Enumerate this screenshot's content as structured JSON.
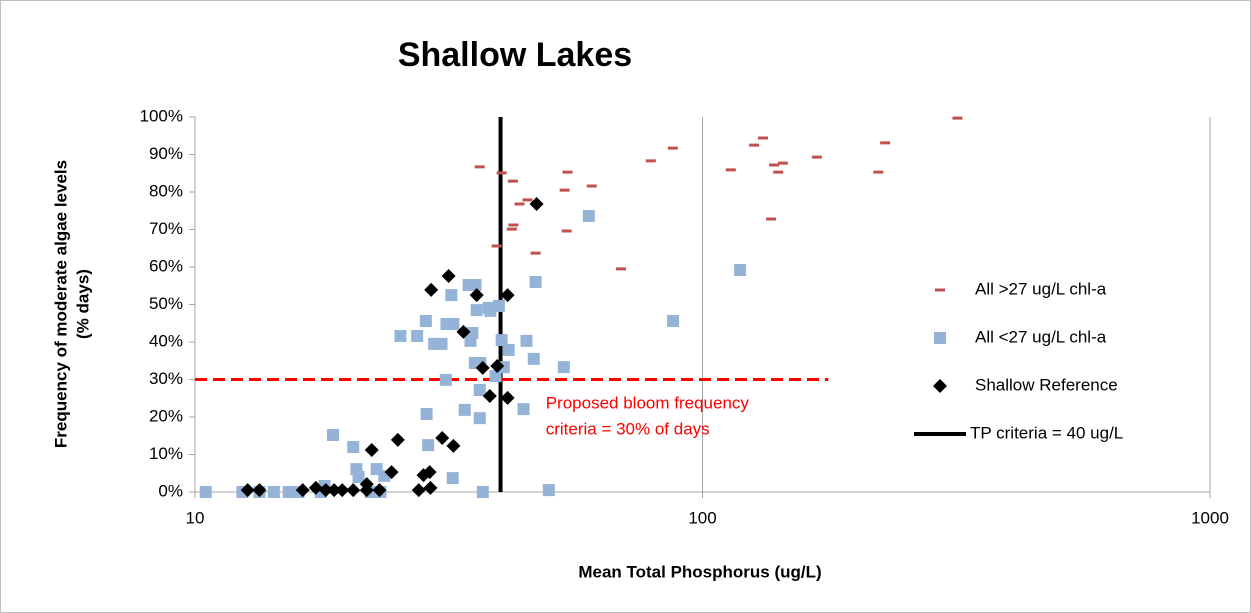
{
  "chart_data": {
    "type": "scatter",
    "title": "Shallow Lakes",
    "xlabel": "Mean Total Phosphorus (ug/L)",
    "ylabel": [
      "Frequency of moderate algae levels",
      "(% days)"
    ],
    "xscale": "log",
    "xlim": [
      10,
      1000
    ],
    "xticks": [
      10,
      100,
      1000
    ],
    "ylim": [
      0,
      100
    ],
    "yticks": [
      {
        "value": 0,
        "label": "0%"
      },
      {
        "value": 10,
        "label": "10%"
      },
      {
        "value": 20,
        "label": "20%"
      },
      {
        "value": 30,
        "label": "30%"
      },
      {
        "value": 40,
        "label": "40%"
      },
      {
        "value": 50,
        "label": "50%"
      },
      {
        "value": 60,
        "label": "60%"
      },
      {
        "value": 70,
        "label": "70%"
      },
      {
        "value": 80,
        "label": "80%"
      },
      {
        "value": 90,
        "label": "90%"
      },
      {
        "value": 100,
        "label": "100%"
      }
    ],
    "xgrid": true,
    "legend": "right",
    "series": [
      {
        "name": "All >27 ug/L chl-a",
        "marker": "dash",
        "color": "#c0504d",
        "x": [
          36.4,
          40.2,
          42.3,
          43.6,
          45.2,
          42.4,
          42.1,
          39.3,
          46.9,
          54.2,
          53.5,
          54.0,
          60.5,
          69.1,
          79.1,
          87.4,
          113.7,
          126.4,
          131.6,
          138.4,
          141,
          144,
          136.5,
          168,
          222,
          229,
          318
        ],
        "values": [
          86.7,
          85.1,
          82.9,
          76.8,
          77.9,
          71.2,
          70.1,
          65.6,
          63.7,
          85.3,
          80.5,
          69.6,
          81.6,
          59.5,
          88.3,
          91.7,
          85.9,
          92.5,
          94.4,
          87.2,
          85.3,
          87.7,
          72.8,
          89.3,
          85.3,
          93.1,
          99.7
        ]
      },
      {
        "name": "All <27 ug/L chl-a",
        "marker": "square",
        "color": "#95b3d7",
        "x": [
          10.5,
          12.4,
          13.4,
          14.3,
          15.3,
          16.0,
          17.7,
          18.0,
          18.7,
          20.5,
          20.8,
          21.0,
          22.2,
          23.2,
          22.8,
          23.6,
          25.4,
          27.4,
          28.5,
          28.6,
          28.8,
          29.6,
          30.6,
          31.2,
          31.3,
          32.0,
          32.3,
          32.2,
          34.0,
          34.6,
          34.9,
          35.2,
          35.6,
          35.9,
          35.7,
          36.4,
          36.5,
          36.4,
          36.9,
          37.9,
          38.2,
          39.1,
          39.7,
          40.2,
          40.6,
          41.5,
          44.4,
          45.0,
          46.5,
          46.9,
          49.8,
          53.3,
          59.7,
          87.5,
          118.6
        ],
        "values": [
          0,
          0,
          0,
          0,
          0,
          0,
          0,
          1.6,
          15.2,
          12,
          6.1,
          4,
          0,
          0,
          6.1,
          4.3,
          41.6,
          41.6,
          45.6,
          20.8,
          12.5,
          39.5,
          39.5,
          29.9,
          44.8,
          52.5,
          44.8,
          3.7,
          21.9,
          55.2,
          40.3,
          42.4,
          34.4,
          48.5,
          55.2,
          27.2,
          34.4,
          19.7,
          0,
          49.1,
          48.3,
          30.9,
          49.6,
          40.5,
          33.3,
          37.9,
          22.1,
          40.3,
          35.5,
          56.0,
          0.5,
          33.3,
          73.6,
          45.6,
          59.2
        ]
      },
      {
        "name": "Shallow Reference",
        "marker": "diamond",
        "color": "#000000",
        "x": [
          12.7,
          13.4,
          16.3,
          17.3,
          18.1,
          18.8,
          19.5,
          20.5,
          21.8,
          22.3,
          21.8,
          23.1,
          24.4,
          25.1,
          27.6,
          28.2,
          29.0,
          29.1,
          29.2,
          30.7,
          31.6,
          32.3,
          33.8,
          35.9,
          36.9,
          38.1,
          39.4,
          41.3,
          41.3,
          47.1
        ],
        "values": [
          0.5,
          0.5,
          0.5,
          1.1,
          0.5,
          0.5,
          0.5,
          0.5,
          2.1,
          11.2,
          0.5,
          0.5,
          5.3,
          13.9,
          0.5,
          4.5,
          5.3,
          1.1,
          53.9,
          14.4,
          57.6,
          12.3,
          42.7,
          52.5,
          33.1,
          25.6,
          33.6,
          25.1,
          52.5,
          76.8
        ]
      }
    ],
    "reference_lines": [
      {
        "name": "TP criteria = 40 ug/L",
        "axis": "x",
        "value": 40,
        "color": "#000000",
        "in_legend": true
      },
      {
        "axis": "y",
        "value": 30,
        "color": "#ff0000",
        "dashed": true,
        "x_range": [
          10,
          177
        ]
      }
    ],
    "annotation": {
      "lines": [
        "Proposed bloom frequency",
        "criteria = 30% of days"
      ],
      "color": "#ff0000",
      "x": 50,
      "y": 20
    }
  }
}
